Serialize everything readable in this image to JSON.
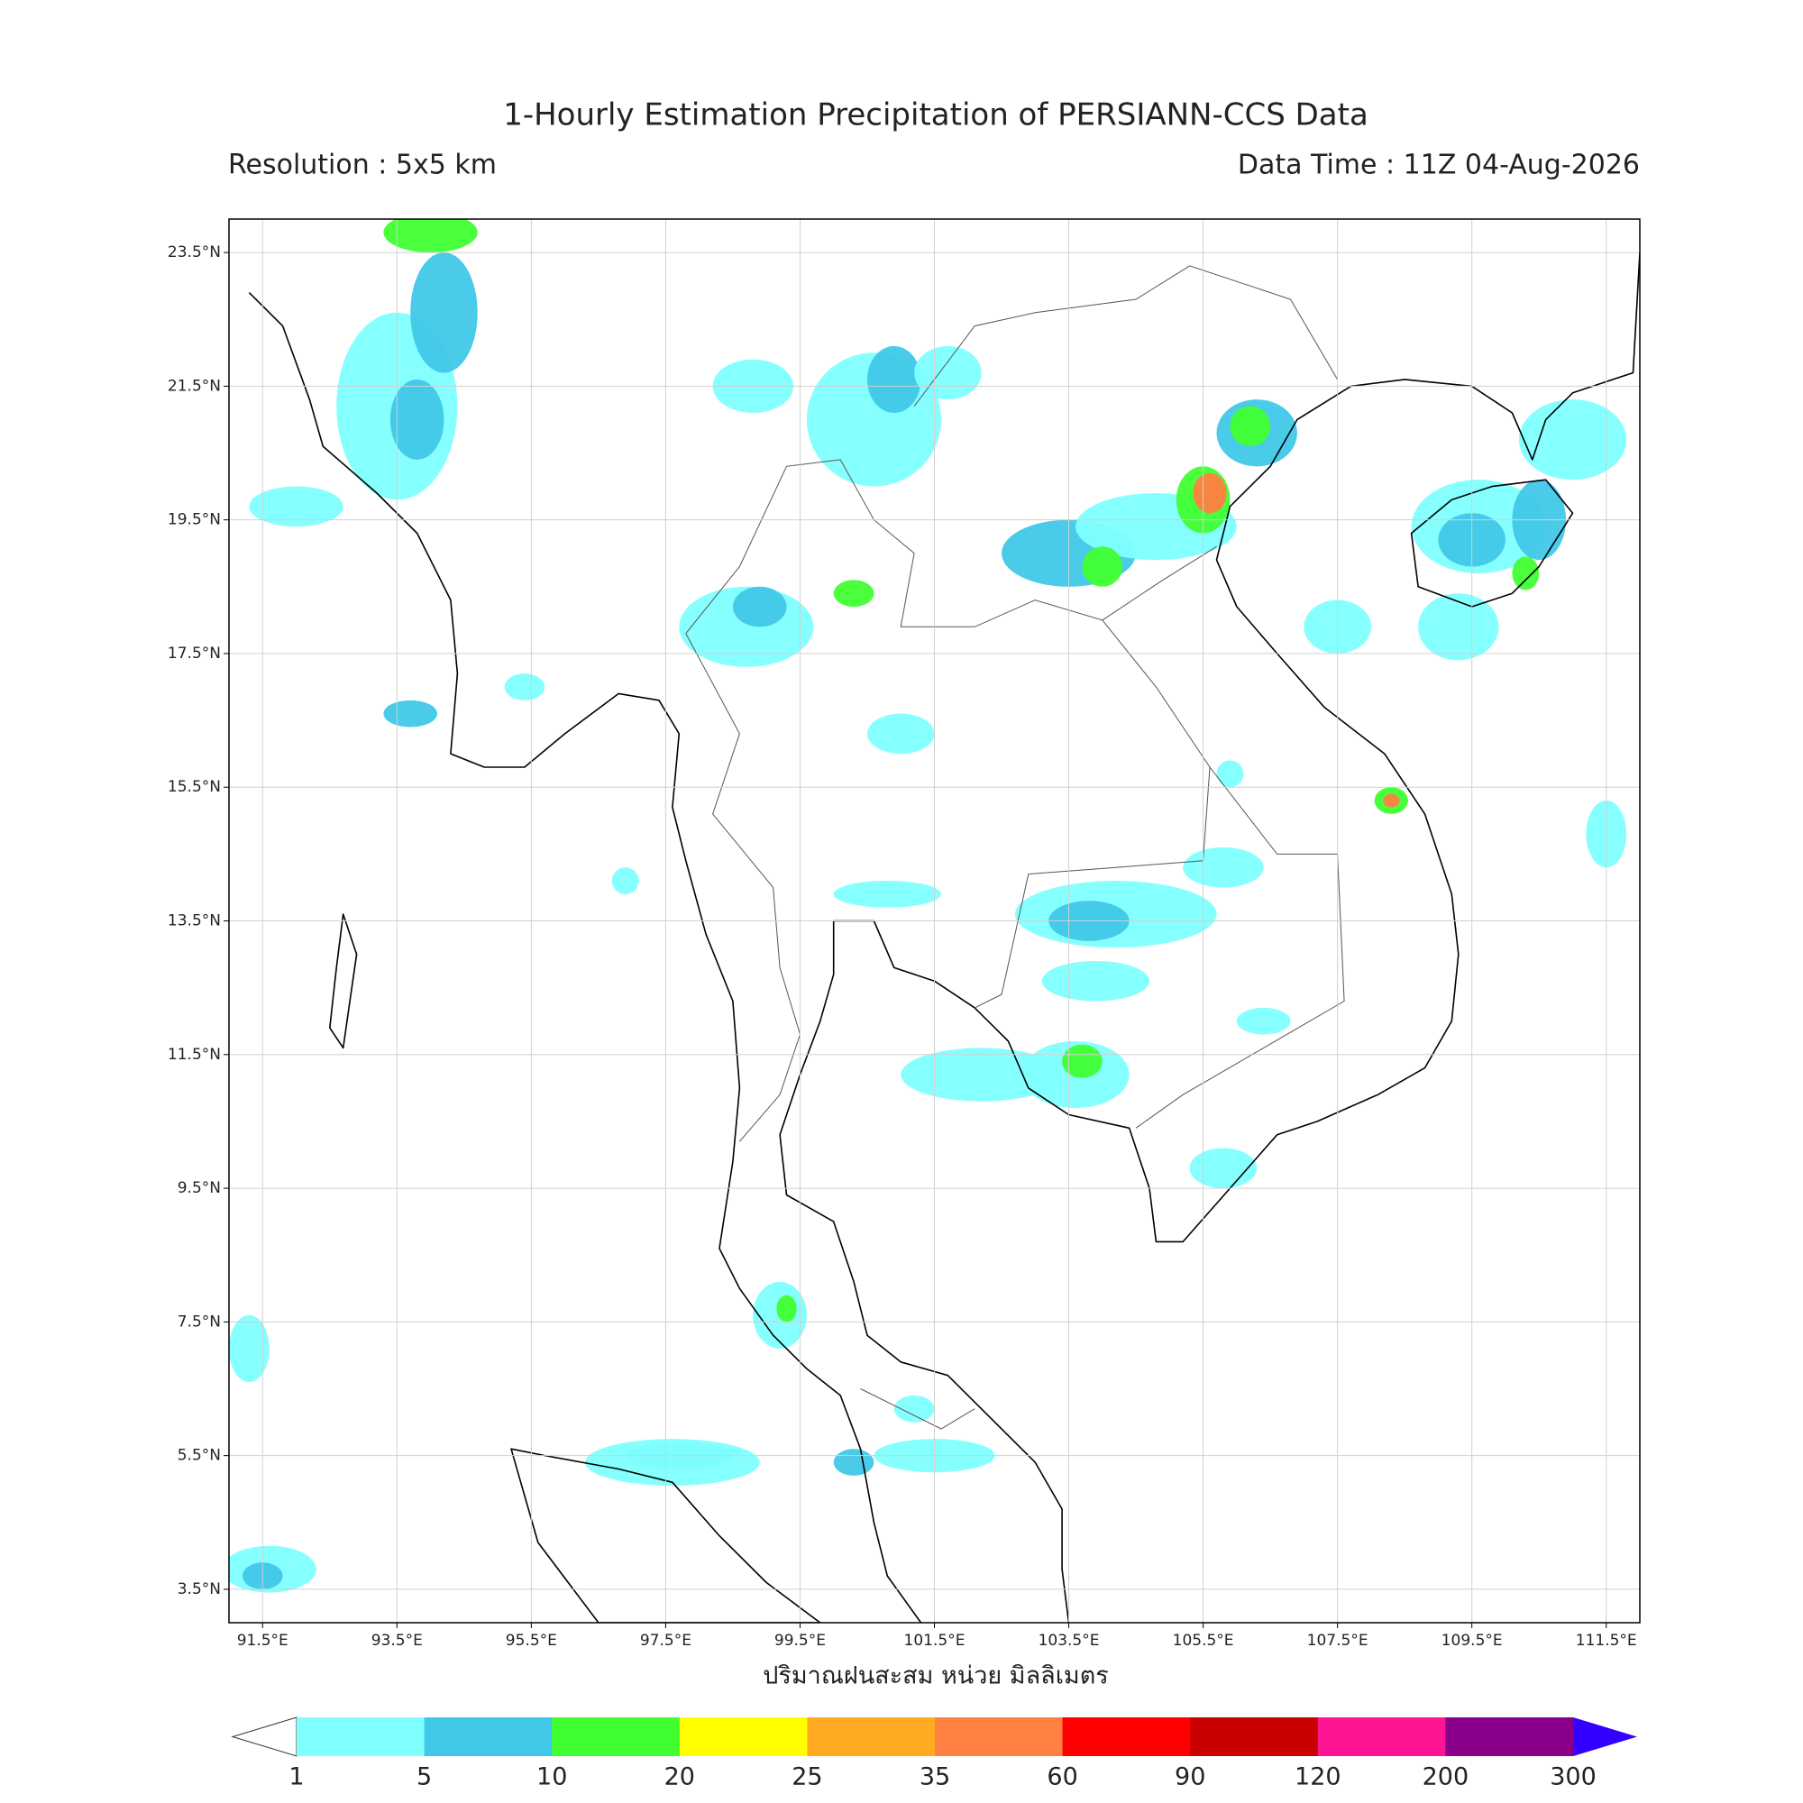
{
  "title": "1-Hourly Estimation Precipitation of PERSIANN-CCS Data",
  "resolution": "Resolution : 5x5 km",
  "data_time": "Data Time : 11Z 04-Aug-2026",
  "map": {
    "xlim": [
      91,
      112
    ],
    "ylim": [
      3,
      24
    ],
    "grid": true,
    "xticks": [
      {
        "value": 91.5,
        "label": "91.5°E"
      },
      {
        "value": 93.5,
        "label": "93.5°E"
      },
      {
        "value": 95.5,
        "label": "95.5°E"
      },
      {
        "value": 97.5,
        "label": "97.5°E"
      },
      {
        "value": 99.5,
        "label": "99.5°E"
      },
      {
        "value": 101.5,
        "label": "101.5°E"
      },
      {
        "value": 103.5,
        "label": "103.5°E"
      },
      {
        "value": 105.5,
        "label": "105.5°E"
      },
      {
        "value": 107.5,
        "label": "107.5°E"
      },
      {
        "value": 109.5,
        "label": "109.5°E"
      },
      {
        "value": 111.5,
        "label": "111.5°E"
      }
    ],
    "yticks": [
      {
        "value": 3.5,
        "label": "3.5°N"
      },
      {
        "value": 5.5,
        "label": "5.5°N"
      },
      {
        "value": 7.5,
        "label": "7.5°N"
      },
      {
        "value": 9.5,
        "label": "9.5°N"
      },
      {
        "value": 11.5,
        "label": "11.5°N"
      },
      {
        "value": 13.5,
        "label": "13.5°N"
      },
      {
        "value": 15.5,
        "label": "15.5°N"
      },
      {
        "value": 17.5,
        "label": "17.5°N"
      },
      {
        "value": 19.5,
        "label": "19.5°N"
      },
      {
        "value": 21.5,
        "label": "21.5°N"
      },
      {
        "value": 23.5,
        "label": "23.5°N"
      }
    ],
    "xlabel": "ปริมาณฝนสะสม หน่วย มิลลิเมตร"
  },
  "colorbar": {
    "levels": [
      1,
      5,
      10,
      20,
      25,
      35,
      60,
      90,
      120,
      200,
      300
    ],
    "colors": [
      "#80ffff",
      "#40c8e8",
      "#40ff30",
      "#ffff00",
      "#ffaa20",
      "#ff8040",
      "#ff0000",
      "#c80000",
      "#ff1493",
      "#8b008b"
    ],
    "under_color": "#ffffff",
    "over_color": "#3300ff"
  }
}
